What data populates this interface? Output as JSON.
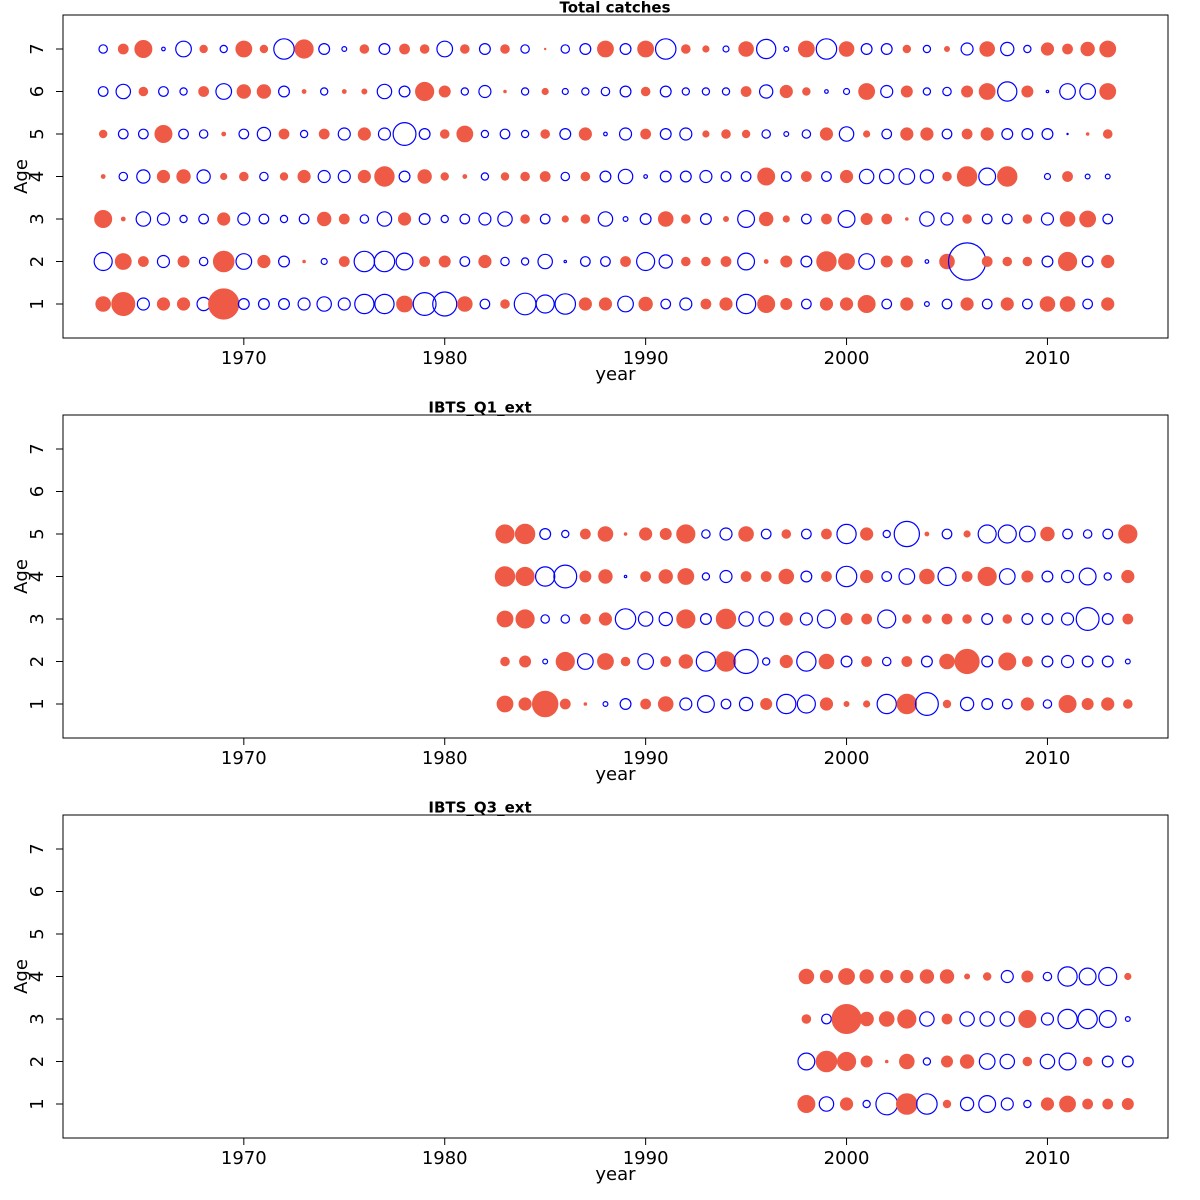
{
  "chart_data": [
    {
      "type": "bubble",
      "title": "Total catches",
      "xlabel": "year",
      "ylabel": "Age",
      "x": [
        1963,
        1964,
        1965,
        1966,
        1967,
        1968,
        1969,
        1970,
        1971,
        1972,
        1973,
        1974,
        1975,
        1976,
        1977,
        1978,
        1979,
        1980,
        1981,
        1982,
        1983,
        1984,
        1985,
        1986,
        1987,
        1988,
        1989,
        1990,
        1991,
        1992,
        1993,
        1994,
        1995,
        1996,
        1997,
        1998,
        1999,
        2000,
        2001,
        2002,
        2003,
        2004,
        2005,
        2006,
        2007,
        2008,
        2009,
        2010,
        2011,
        2012,
        2013
      ],
      "y": [
        1,
        2,
        3,
        4,
        5,
        6,
        7
      ],
      "values": [
        [
          1.2,
          1.9,
          -1.0,
          1.0,
          1.0,
          -1.1,
          2.5,
          -0.9,
          -0.9,
          -0.9,
          -1.0,
          -1.2,
          -1.0,
          -1.6,
          -1.6,
          1.3,
          -1.9,
          -2.0,
          1.2,
          -0.8,
          0.7,
          -1.8,
          -1.5,
          -1.7,
          1.0,
          1.0,
          -1.3,
          1.1,
          -0.8,
          -1.0,
          0.8,
          1.0,
          -1.6,
          1.4,
          0.9,
          -0.8,
          1.0,
          1.0,
          1.4,
          -0.8,
          1.0,
          -0.4,
          -0.8,
          1.0,
          -0.8,
          1.0,
          -0.8,
          1.2,
          1.2,
          -0.8,
          1.0
        ],
        [
          -1.5,
          1.3,
          0.8,
          -1.0,
          0.9,
          -0.7,
          1.7,
          -1.3,
          1.0,
          -0.9,
          0.2,
          -0.5,
          0.8,
          -1.7,
          -1.7,
          -1.4,
          0.8,
          0.9,
          -0.8,
          1.0,
          -0.7,
          -0.6,
          -1.2,
          -0.2,
          -0.8,
          -0.8,
          0.8,
          -1.5,
          -1.1,
          0.7,
          0.7,
          0.8,
          -1.4,
          0.3,
          0.9,
          -0.9,
          1.6,
          1.3,
          -1.3,
          0.9,
          0.9,
          -0.3,
          1.2,
          -3.1,
          0.8,
          0.7,
          0.7,
          -0.9,
          1.5,
          -0.9,
          1.0
        ],
        [
          1.4,
          0.3,
          -1.2,
          -1.0,
          -0.6,
          -0.8,
          1.0,
          -1.0,
          -0.8,
          -0.6,
          -0.8,
          1.1,
          0.8,
          -0.7,
          -1.2,
          1.0,
          -0.9,
          -0.6,
          -0.8,
          -1.0,
          -1.2,
          0.7,
          -0.8,
          0.5,
          0.7,
          -1.2,
          -0.4,
          -0.9,
          1.2,
          0.7,
          -0.9,
          0.4,
          -1.4,
          1.1,
          0.5,
          -0.8,
          0.8,
          -1.4,
          0.9,
          0.8,
          0.2,
          -1.2,
          -1.0,
          0.7,
          -0.8,
          -0.8,
          0.7,
          -1.0,
          1.2,
          1.3,
          -0.8
        ],
        [
          0.3,
          -0.7,
          -1.1,
          1.0,
          1.1,
          -1.1,
          0.5,
          0.7,
          -0.7,
          0.6,
          1.0,
          -1.0,
          -1.0,
          1.0,
          1.6,
          -0.9,
          1.1,
          0.6,
          0.3,
          -0.6,
          0.6,
          0.7,
          0.8,
          -0.7,
          0.7,
          -0.9,
          -1.2,
          -0.3,
          -0.9,
          -0.9,
          -1.0,
          -0.8,
          -0.8,
          1.4,
          -0.8,
          0.8,
          -0.8,
          1.0,
          -1.2,
          -1.2,
          -1.3,
          -1.1,
          0.7,
          1.6,
          -1.4,
          1.6,
          0,
          -0.5,
          0.8,
          -0.4,
          -0.4
        ],
        [
          0.6,
          -0.8,
          -0.8,
          1.4,
          -0.8,
          -0.7,
          0.3,
          -0.8,
          -1.1,
          0.8,
          -0.6,
          0.8,
          -1.0,
          1.0,
          -1.0,
          -1.9,
          -0.9,
          0.7,
          1.3,
          -0.6,
          -0.8,
          -0.6,
          0.7,
          -0.9,
          1.0,
          -0.3,
          -1.0,
          0.8,
          -0.9,
          -1.0,
          0.5,
          0.7,
          0.6,
          -0.7,
          -0.4,
          -0.7,
          1.0,
          -1.2,
          0.5,
          -0.8,
          1.0,
          1.0,
          -0.8,
          0.8,
          1.0,
          -0.9,
          -0.9,
          -0.9,
          -0.1,
          0.2,
          0.7
        ],
        [
          -0.8,
          -1.2,
          0.7,
          -0.8,
          -0.6,
          0.8,
          -1.3,
          1.1,
          1.1,
          -0.9,
          0.3,
          -0.6,
          0.3,
          0.4,
          -1.2,
          -0.9,
          1.5,
          0.9,
          -0.6,
          -1.0,
          0.2,
          -0.6,
          0.5,
          -0.5,
          -0.6,
          -0.7,
          -0.9,
          0.7,
          -0.9,
          -0.6,
          -0.6,
          -0.6,
          0.8,
          -1.1,
          1.0,
          0.6,
          -0.3,
          -0.5,
          1.3,
          -1.0,
          0.9,
          -0.6,
          -0.7,
          0.9,
          1.3,
          -1.6,
          0.9,
          -0.2,
          -1.3,
          -1.3,
          1.3
        ],
        [
          -0.7,
          0.8,
          1.4,
          -0.3,
          -1.3,
          0.6,
          -0.6,
          1.3,
          0.6,
          -1.7,
          1.5,
          -0.9,
          -0.4,
          0.7,
          -0.9,
          0.8,
          0.7,
          -1.3,
          0.7,
          -0.9,
          0.7,
          -0.7,
          0.1,
          -0.7,
          -0.9,
          1.3,
          -0.9,
          1.3,
          -1.7,
          0.7,
          0.5,
          -0.5,
          1.2,
          -1.6,
          -0.4,
          1.3,
          -1.7,
          1.2,
          -0.9,
          -0.9,
          0.6,
          -0.6,
          0.4,
          -1.0,
          1.2,
          -1.1,
          -0.6,
          1.0,
          0.8,
          1.1,
          1.3
        ]
      ],
      "colors": {
        "positive": "#ee5a45",
        "negative": "#0000ff"
      },
      "xlim": [
        1961,
        2016
      ],
      "ylim": [
        0.2,
        7.8
      ],
      "xticks": [
        1970,
        1980,
        1990,
        2000,
        2010
      ],
      "yticks": [
        1,
        2,
        3,
        4,
        5,
        6,
        7
      ]
    },
    {
      "type": "bubble",
      "title": "IBTS_Q1_ext",
      "xlabel": "year",
      "ylabel": "Age",
      "x": [
        1983,
        1984,
        1985,
        1986,
        1987,
        1988,
        1989,
        1990,
        1991,
        1992,
        1993,
        1994,
        1995,
        1996,
        1997,
        1998,
        1999,
        2000,
        2001,
        2002,
        2003,
        2004,
        2005,
        2006,
        2007,
        2008,
        2009,
        2010,
        2011,
        2012,
        2013,
        2014
      ],
      "y": [
        1,
        2,
        3,
        4,
        5
      ],
      "values": [
        [
          1.3,
          1.0,
          2.1,
          0.8,
          0.2,
          -0.4,
          -0.9,
          0.8,
          1.2,
          -1.0,
          -1.4,
          -0.8,
          -1.1,
          0.9,
          -1.6,
          -1.5,
          1.0,
          0.4,
          0.5,
          -1.6,
          1.6,
          -1.9,
          0.6,
          -1.1,
          -0.9,
          -0.8,
          1.0,
          -0.7,
          1.4,
          0.9,
          1.0,
          0.7
        ],
        [
          0.7,
          0.9,
          -0.4,
          1.5,
          -1.3,
          1.3,
          0.7,
          -1.3,
          0.8,
          1.1,
          -1.6,
          1.6,
          -2.0,
          -0.6,
          1.0,
          -1.6,
          1.2,
          -0.9,
          0.8,
          -0.7,
          0.8,
          -0.9,
          1.2,
          2.0,
          -0.9,
          1.4,
          0.8,
          -0.9,
          -1.0,
          -0.9,
          -0.9,
          -0.4
        ],
        [
          1.3,
          1.5,
          -0.7,
          -0.7,
          0.8,
          1.0,
          -1.7,
          -1.2,
          -1.1,
          1.5,
          -0.9,
          1.6,
          -1.2,
          -1.2,
          1.0,
          -1.0,
          -1.5,
          0.9,
          0.8,
          -1.5,
          0.7,
          0.7,
          0.8,
          0.7,
          -0.9,
          0.7,
          -0.9,
          -0.9,
          -1.0,
          -1.9,
          -0.9,
          0.8
        ],
        [
          1.6,
          1.5,
          -1.6,
          -1.9,
          0.9,
          1.1,
          -0.2,
          0.8,
          1.1,
          1.3,
          -0.6,
          -1.0,
          0.8,
          0.8,
          1.2,
          -0.9,
          0.8,
          -1.7,
          1.0,
          -0.8,
          -1.3,
          1.2,
          -1.5,
          0.8,
          1.5,
          -1.3,
          0.9,
          -0.9,
          -1.0,
          -1.4,
          -0.6,
          1.0
        ],
        [
          1.5,
          1.6,
          -0.9,
          -0.6,
          0.8,
          1.2,
          0.2,
          1.0,
          0.9,
          1.5,
          -0.7,
          -1.0,
          1.2,
          -0.8,
          0.7,
          -0.8,
          0.8,
          -1.6,
          1.0,
          -0.6,
          -2.1,
          0.3,
          -0.8,
          0.5,
          -1.5,
          -1.5,
          -1.3,
          1.1,
          -0.8,
          -0.7,
          -0.8,
          1.5
        ]
      ],
      "colors": {
        "positive": "#ee5a45",
        "negative": "#0000ff"
      },
      "xlim": [
        1961,
        2016
      ],
      "ylim": [
        0.2,
        7.8
      ],
      "xticks": [
        1970,
        1980,
        1990,
        2000,
        2010
      ],
      "yticks": [
        1,
        2,
        3,
        4,
        5,
        6,
        7
      ]
    },
    {
      "type": "bubble",
      "title": "IBTS_Q3_ext",
      "xlabel": "year",
      "ylabel": "Age",
      "x": [
        1998,
        1999,
        2000,
        2001,
        2002,
        2003,
        2004,
        2005,
        2006,
        2007,
        2008,
        2009,
        2010,
        2011,
        2012,
        2013,
        2014
      ],
      "y": [
        1,
        2,
        3,
        4
      ],
      "values": [
        [
          1.4,
          -1.2,
          1.0,
          -0.6,
          -1.8,
          1.7,
          -1.7,
          0.6,
          -1.1,
          -1.4,
          -1.0,
          -0.6,
          1.0,
          1.3,
          0.8,
          0.8,
          0.9
        ],
        [
          -1.4,
          1.7,
          1.5,
          0.9,
          0.2,
          1.2,
          -0.6,
          0.9,
          1.1,
          -1.3,
          -1.2,
          0.7,
          -1.2,
          -1.4,
          0.7,
          -0.9,
          -0.9
        ],
        [
          0.7,
          -0.8,
          2.4,
          1.1,
          1.2,
          1.5,
          -1.2,
          0.8,
          -1.2,
          -1.2,
          -1.2,
          1.4,
          -1.0,
          -1.6,
          -1.6,
          -1.4,
          -0.4
        ],
        [
          1.2,
          1.0,
          1.3,
          1.1,
          1.0,
          1.0,
          1.1,
          1.1,
          0.4,
          0.6,
          -1.0,
          0.9,
          -0.7,
          -1.6,
          -1.4,
          -1.5,
          0.5
        ]
      ],
      "colors": {
        "positive": "#ee5a45",
        "negative": "#0000ff"
      },
      "xlim": [
        1961,
        2016
      ],
      "ylim": [
        0.2,
        7.8
      ],
      "xticks": [
        1970,
        1980,
        1990,
        2000,
        2010
      ],
      "yticks": [
        1,
        2,
        3,
        4,
        5,
        6,
        7
      ]
    }
  ]
}
